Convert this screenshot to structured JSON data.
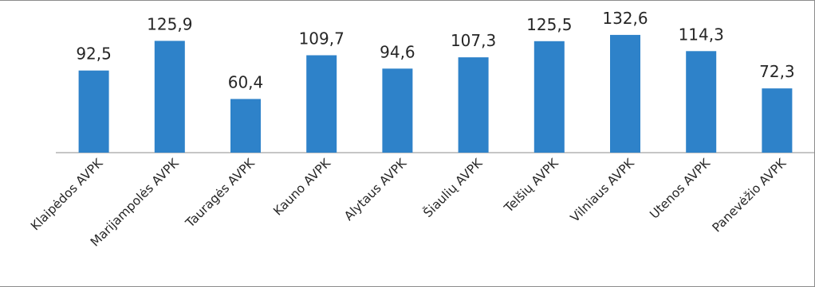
{
  "chart_data": {
    "type": "bar",
    "categories": [
      "Klaipėdos AVPK",
      "Marijampolės AVPK",
      "Tauragės AVPK",
      "Kauno AVPK",
      "Alytaus AVPK",
      "Šiaulių AVPK",
      "Telšių AVPK",
      "Vilniaus AVPK",
      "Utenos AVPK",
      "Panevėžio AVPK"
    ],
    "values": [
      92.5,
      125.9,
      60.4,
      109.7,
      94.6,
      107.3,
      125.5,
      132.6,
      114.3,
      72.3
    ],
    "value_labels": [
      "92,5",
      "125,9",
      "60,4",
      "109,7",
      "94,6",
      "107,3",
      "125,5",
      "132,6",
      "114,3",
      "72,3"
    ],
    "bar_color": "#2e82c9",
    "axis_color": "#8c8c8c",
    "text_color": "#262626",
    "grid": false,
    "legend": "none",
    "ylim": [
      0,
      150
    ]
  }
}
